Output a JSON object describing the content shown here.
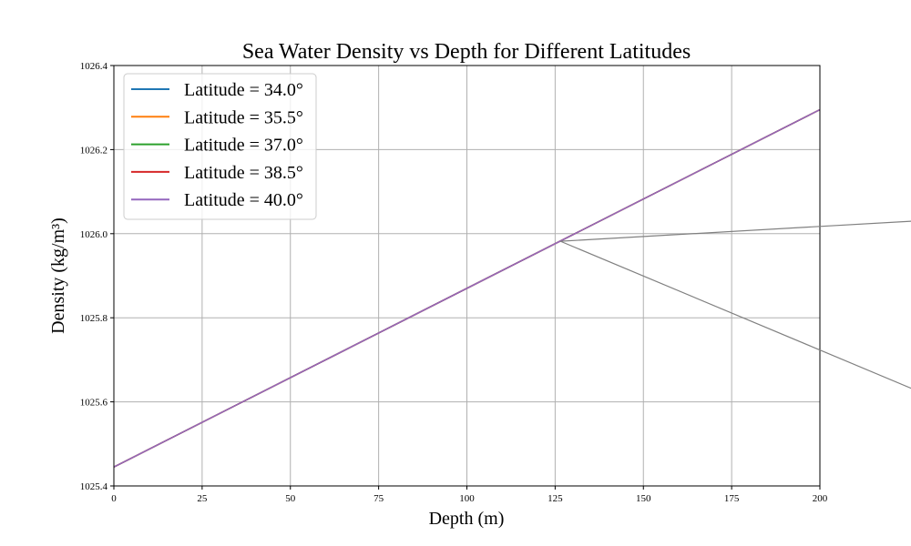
{
  "chart_data": {
    "type": "line",
    "title": "Sea Water Density vs Depth for Different Latitudes",
    "xlabel": "Depth (m)",
    "ylabel": "Density (kg/m³)",
    "xlim": [
      0,
      200
    ],
    "ylim": [
      1025.4,
      1026.4
    ],
    "xticks": [
      0,
      25,
      50,
      75,
      100,
      125,
      150,
      175,
      200
    ],
    "yticks": [
      1025.4,
      1025.6,
      1025.8,
      1026.0,
      1026.2,
      1026.4
    ],
    "xtick_labels": [
      "0",
      "25",
      "50",
      "75",
      "100",
      "125",
      "150",
      "175",
      "200"
    ],
    "ytick_labels": [
      "1025.4",
      "1025.6",
      "1025.8",
      "1026.0",
      "1026.2",
      "1026.4"
    ],
    "grid": true,
    "legend_position": "top-left",
    "x": [
      0,
      200
    ],
    "series": [
      {
        "name": "Latitude = 34.0°",
        "color": "#1f77b4",
        "values": [
          1025.445,
          1026.295
        ]
      },
      {
        "name": "Latitude = 35.5°",
        "color": "#ff7f0e",
        "values": [
          1025.445,
          1026.295
        ]
      },
      {
        "name": "Latitude = 37.0°",
        "color": "#2ca02c",
        "values": [
          1025.445,
          1026.295
        ]
      },
      {
        "name": "Latitude = 38.5°",
        "color": "#d62728",
        "values": [
          1025.445,
          1026.295
        ]
      },
      {
        "name": "Latitude = 40.0°",
        "color": "#9467bd",
        "values": [
          1025.445,
          1026.295
        ]
      }
    ],
    "annotation_lines": [
      {
        "color": "#808080",
        "from": [
          126.5,
          1025.982
        ],
        "to": [
          226.5,
          1026.03
        ]
      },
      {
        "color": "#808080",
        "from": [
          126.5,
          1025.982
        ],
        "to": [
          226.5,
          1025.63
        ]
      }
    ]
  }
}
